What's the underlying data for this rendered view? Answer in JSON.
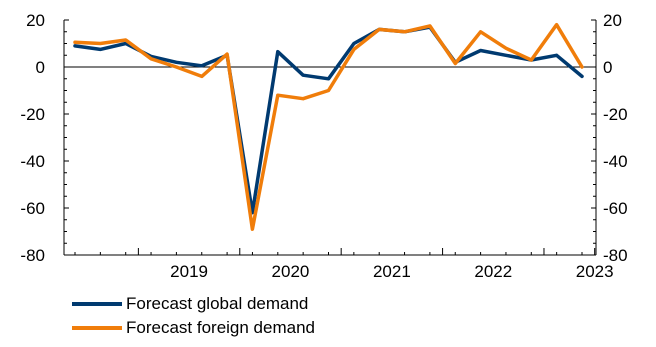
{
  "chart_data": {
    "type": "line",
    "title": "",
    "xlabel": "",
    "ylabel": "",
    "ylim": [
      -80,
      20
    ],
    "yticks": [
      20,
      0,
      -20,
      -40,
      -60,
      -80
    ],
    "y_axes": "left and right, identical",
    "grid": false,
    "legend_position": "bottom-left",
    "x_tick_labels": [
      "2019",
      "2020",
      "2021",
      "2022",
      "2023"
    ],
    "x": [
      "2018Q2",
      "2018Q3",
      "2018Q4",
      "2019Q1",
      "2019Q2",
      "2019Q3",
      "2019Q4",
      "2020Q1",
      "2020Q2",
      "2020Q3",
      "2020Q4",
      "2021Q1",
      "2021Q2",
      "2021Q3",
      "2021Q4",
      "2022Q1",
      "2022Q2",
      "2022Q3",
      "2022Q4",
      "2023Q1",
      "2023Q2"
    ],
    "series": [
      {
        "name": "Forecast global demand",
        "color": "#003a70",
        "values": [
          9,
          7.5,
          10,
          4.5,
          2,
          0.5,
          5,
          -62,
          6.5,
          -3.5,
          -5,
          10,
          16,
          15,
          17,
          2,
          7,
          5,
          3,
          5,
          -4
        ]
      },
      {
        "name": "Forecast foreign demand",
        "color": "#f07d0a",
        "values": [
          10.5,
          10,
          11.5,
          3.5,
          0,
          -4,
          5.5,
          -69,
          -12,
          -13.5,
          -10,
          7.5,
          16,
          15,
          17.5,
          1.5,
          15,
          8,
          3,
          18,
          0
        ]
      }
    ]
  }
}
